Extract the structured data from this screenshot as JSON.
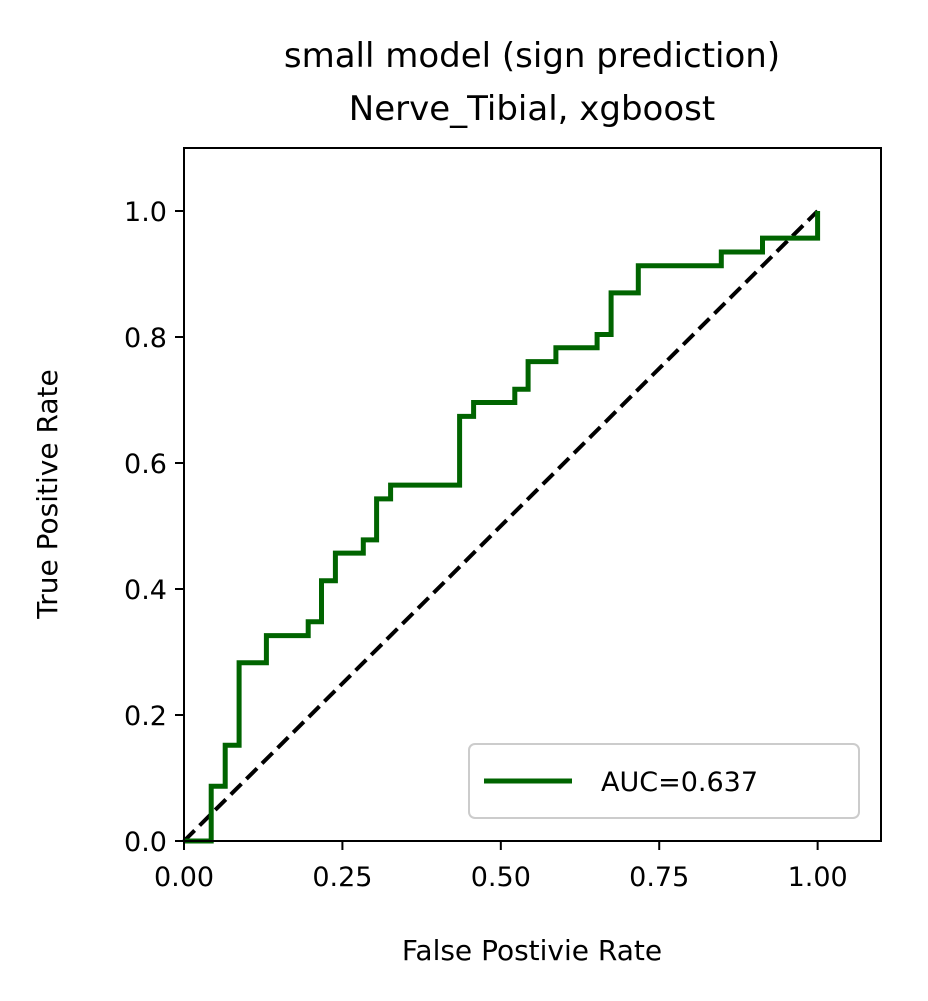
{
  "chart_data": {
    "type": "line",
    "title": [
      "small model (sign prediction)",
      "Nerve_Tibial, xgboost"
    ],
    "xlabel": "False Postivie Rate",
    "ylabel": "True Positive Rate",
    "xlim": [
      0.0,
      1.1
    ],
    "ylim": [
      0.0,
      1.1
    ],
    "xticks": [
      "0.00",
      "0.25",
      "0.50",
      "0.75",
      "1.00"
    ],
    "xtick_values": [
      0.0,
      0.25,
      0.5,
      0.75,
      1.0
    ],
    "yticks": [
      "0.0",
      "0.2",
      "0.4",
      "0.6",
      "0.8",
      "1.0"
    ],
    "ytick_values": [
      0.0,
      0.2,
      0.4,
      0.6,
      0.8,
      1.0
    ],
    "grid": false,
    "legend_position": "lower right",
    "series": [
      {
        "name": "AUC=0.637",
        "color": "#006400",
        "style": "solid",
        "x": [
          0.0,
          0.043,
          0.043,
          0.065,
          0.065,
          0.087,
          0.087,
          0.13,
          0.13,
          0.196,
          0.196,
          0.217,
          0.217,
          0.239,
          0.239,
          0.283,
          0.283,
          0.304,
          0.304,
          0.326,
          0.326,
          0.435,
          0.435,
          0.457,
          0.457,
          0.522,
          0.522,
          0.543,
          0.543,
          0.587,
          0.587,
          0.652,
          0.652,
          0.674,
          0.674,
          0.717,
          0.717,
          0.848,
          0.848,
          0.913,
          0.913,
          1.0,
          1.0
        ],
        "y": [
          0.0,
          0.0,
          0.087,
          0.087,
          0.152,
          0.152,
          0.283,
          0.283,
          0.326,
          0.326,
          0.348,
          0.348,
          0.413,
          0.413,
          0.457,
          0.457,
          0.478,
          0.478,
          0.543,
          0.543,
          0.565,
          0.565,
          0.674,
          0.674,
          0.696,
          0.696,
          0.717,
          0.717,
          0.761,
          0.761,
          0.783,
          0.783,
          0.804,
          0.804,
          0.87,
          0.87,
          0.913,
          0.913,
          0.935,
          0.935,
          0.957,
          0.957,
          1.0
        ]
      },
      {
        "name": "",
        "color": "#000000",
        "style": "dashed",
        "x": [
          0.0,
          1.0
        ],
        "y": [
          0.0,
          1.0
        ]
      }
    ]
  }
}
